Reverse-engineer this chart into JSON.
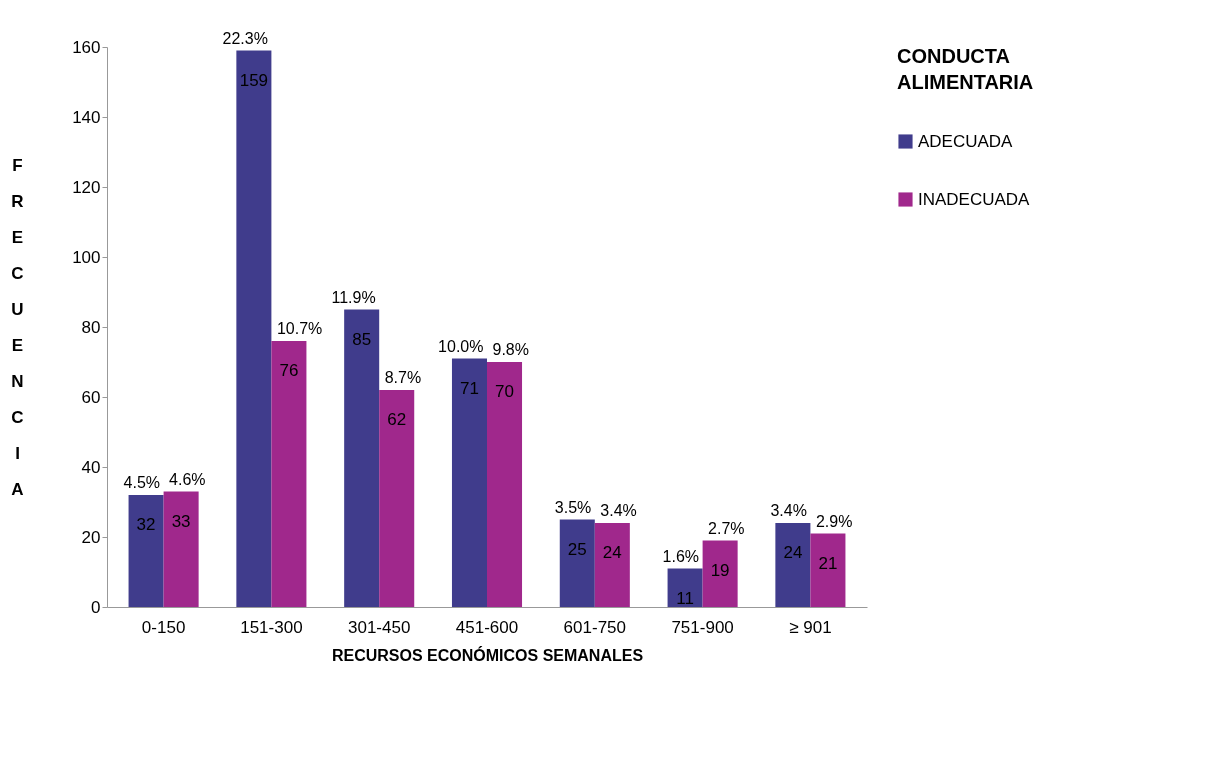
{
  "chart_data": {
    "type": "bar",
    "xlabel": "RECURSOS ECONÓMICOS SEMANALES",
    "ylabel": "FRECUENCIA",
    "legend_title": "CONDUCTA ALIMENTARIA",
    "legend": "right",
    "grid": false,
    "data_labels": true,
    "categories": [
      "0-150",
      "151-300",
      "301-450",
      "451-600",
      "601-750",
      "751-900",
      "≥ 901"
    ],
    "ylim": [
      0,
      160
    ],
    "yticks": [
      0,
      20,
      40,
      60,
      80,
      100,
      120,
      140,
      160
    ],
    "series": [
      {
        "name": "ADECUADA",
        "color": "#403c8c",
        "values": [
          32,
          159,
          85,
          71,
          25,
          11,
          24
        ]
      },
      {
        "name": "INADECUADA",
        "color": "#a0288c",
        "values": [
          33,
          76,
          62,
          70,
          24,
          19,
          21
        ]
      }
    ],
    "annotations": [
      {
        "text": "4.5%",
        "x": "0-150",
        "y": 32
      },
      {
        "text": "4.6%",
        "x": "0-150",
        "y": 33
      },
      {
        "text": "22.3%",
        "x": "151-300",
        "y": 159
      },
      {
        "text": "10.7%",
        "x": "151-300",
        "y": 76
      },
      {
        "text": "11.9%",
        "x": "301-450",
        "y": 85
      },
      {
        "text": "8.7%",
        "x": "301-450",
        "y": 62
      },
      {
        "text": "10.0%",
        "x": "451-600",
        "y": 71
      },
      {
        "text": "9.8%",
        "x": "451-600",
        "y": 70
      },
      {
        "text": "3.5%",
        "x": "601-750",
        "y": 25
      },
      {
        "text": "3.4%",
        "x": "601-750",
        "y": 24
      },
      {
        "text": "1.6%",
        "x": "751-900",
        "y": 11
      },
      {
        "text": "2.7%",
        "x": "751-900",
        "y": 19
      },
      {
        "text": "3.4%",
        "x": "≥ 901",
        "y": 24
      },
      {
        "text": "2.9%",
        "x": "≥ 901",
        "y": 21
      }
    ]
  }
}
